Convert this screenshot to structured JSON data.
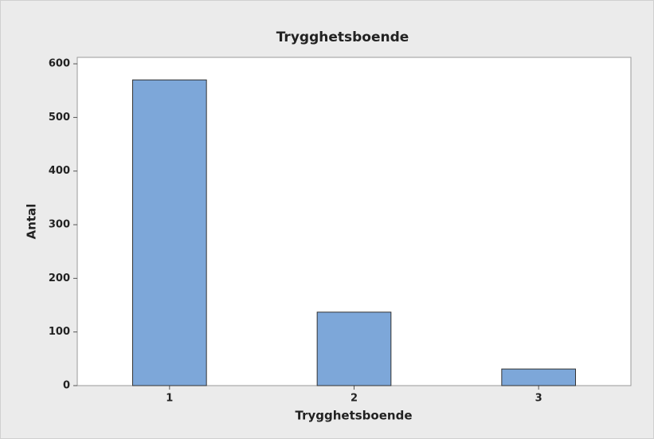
{
  "chart_data": {
    "type": "bar",
    "title": "Trygghetsboende",
    "x_label": "Trygghetsboende",
    "y_label": "Antal",
    "categories": [
      "1",
      "2",
      "3"
    ],
    "values": [
      570,
      137,
      31
    ],
    "color": "#7da7d9",
    "ylim": [
      0,
      612
    ],
    "yticks": [
      0,
      100,
      200,
      300,
      400,
      500,
      600
    ],
    "grid": false
  }
}
